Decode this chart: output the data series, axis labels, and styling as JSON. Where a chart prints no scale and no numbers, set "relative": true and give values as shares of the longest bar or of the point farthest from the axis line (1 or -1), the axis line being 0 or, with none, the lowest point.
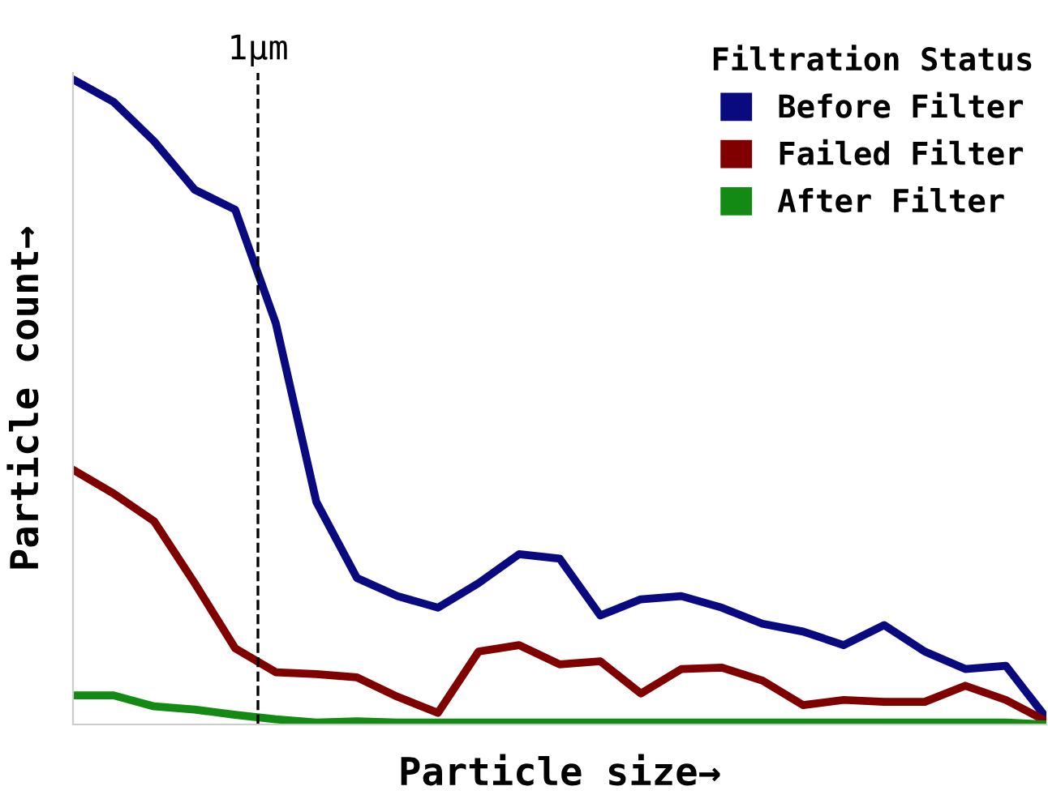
{
  "chart_data": {
    "type": "line",
    "relative": true,
    "xlabel": "Particle size→",
    "ylabel": "Particle count→",
    "legend_title": "Filtration Status",
    "legend": "top right",
    "marker": "none",
    "line_style": "solid",
    "categories": [
      null,
      null,
      null,
      null,
      null,
      null,
      null,
      null,
      null,
      null,
      null,
      null,
      null,
      null,
      null,
      null,
      null,
      null,
      null,
      null,
      null,
      null,
      null,
      null,
      null
    ],
    "series": [
      {
        "name": "Before Filter",
        "color": "#0a0a80",
        "values": [
          1.0,
          0.965,
          0.904,
          0.829,
          0.798,
          0.622,
          0.345,
          0.227,
          0.199,
          0.181,
          0.219,
          0.264,
          0.257,
          0.169,
          0.194,
          0.199,
          0.181,
          0.156,
          0.144,
          0.123,
          0.154,
          0.113,
          0.086,
          0.091,
          0.01
        ]
      },
      {
        "name": "Failed Filter",
        "color": "#800000",
        "values": [
          0.395,
          0.358,
          0.315,
          0.219,
          0.118,
          0.081,
          0.078,
          0.073,
          0.043,
          0.018,
          0.113,
          0.123,
          0.093,
          0.098,
          0.048,
          0.086,
          0.088,
          0.068,
          0.03,
          0.038,
          0.035,
          0.035,
          0.06,
          0.038,
          0.005
        ]
      },
      {
        "name": "After Filter",
        "color": "#138a13",
        "values": [
          0.045,
          0.045,
          0.028,
          0.023,
          0.015,
          0.008,
          0.003,
          0.005,
          0.003,
          0.003,
          0.003,
          0.003,
          0.003,
          0.003,
          0.003,
          0.003,
          0.003,
          0.003,
          0.003,
          0.003,
          0.003,
          0.003,
          0.003,
          0.003,
          0.0
        ]
      }
    ],
    "annotations": [
      "1μm"
    ]
  }
}
